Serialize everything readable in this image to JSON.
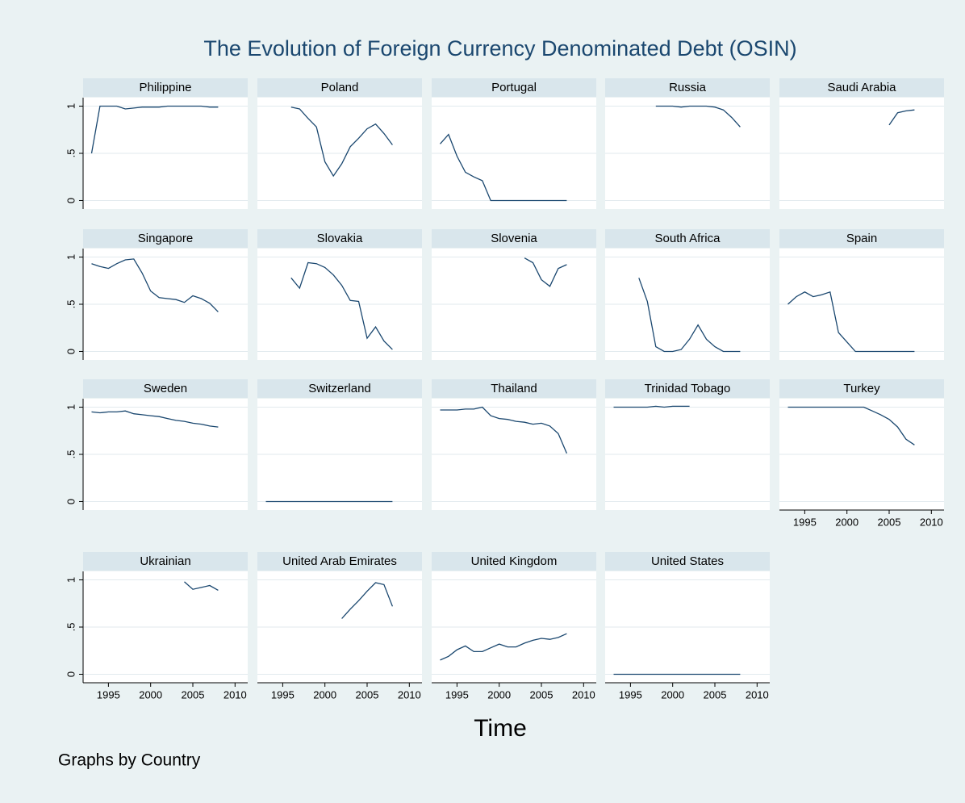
{
  "title": "The Evolution of Foreign Currency Denominated Debt (OSIN)",
  "x_label": "Time",
  "note": "Graphs by Country",
  "chart_data": [
    {
      "type": "line",
      "title": "Philippine",
      "x": [
        1993,
        1994,
        1995,
        1996,
        1997,
        1998,
        1999,
        2000,
        2001,
        2002,
        2003,
        2004,
        2005,
        2006,
        2007,
        2008
      ],
      "values": [
        0.5,
        1.0,
        1.0,
        1.0,
        0.97,
        0.98,
        0.99,
        0.99,
        0.99,
        1.0,
        1.0,
        1.0,
        1.0,
        1.0,
        0.99,
        0.99
      ],
      "xlim": [
        1992,
        2011.5
      ],
      "ylim": [
        -0.09,
        1.09
      ],
      "yticks": [
        0,
        {
          "value": 0.5,
          "label": ".5"
        },
        1
      ],
      "color": "#1a476f"
    },
    {
      "type": "line",
      "title": "Poland",
      "x": [
        1996,
        1997,
        1998,
        1999,
        2000,
        2001,
        2002,
        2003,
        2004,
        2005,
        2006,
        2007,
        2008
      ],
      "values": [
        0.99,
        0.97,
        0.87,
        0.78,
        0.41,
        0.26,
        0.39,
        0.57,
        0.66,
        0.76,
        0.81,
        0.71,
        0.59
      ],
      "xlim": [
        1992,
        2011.5
      ],
      "ylim": [
        -0.09,
        1.09
      ],
      "yticks": [
        0,
        0.5,
        1
      ],
      "color": "#1a476f"
    },
    {
      "type": "line",
      "title": "Portugal",
      "x": [
        1993,
        1994,
        1995,
        1996,
        1997,
        1998,
        1999,
        2000,
        2001,
        2002,
        2003,
        2004,
        2005,
        2006,
        2007,
        2008
      ],
      "values": [
        0.6,
        0.7,
        0.47,
        0.3,
        0.25,
        0.21,
        0,
        0,
        0,
        0,
        0,
        0,
        0,
        0,
        0,
        0
      ],
      "xlim": [
        1992,
        2011.5
      ],
      "ylim": [
        -0.09,
        1.09
      ],
      "yticks": [
        0,
        0.5,
        1
      ],
      "color": "#1a476f"
    },
    {
      "type": "line",
      "title": "Russia",
      "x": [
        1998,
        1999,
        2000,
        2001,
        2002,
        2003,
        2004,
        2005,
        2006,
        2007,
        2008
      ],
      "values": [
        1.0,
        1.0,
        1.0,
        0.99,
        1.0,
        1.0,
        1.0,
        0.99,
        0.96,
        0.88,
        0.78
      ],
      "xlim": [
        1992,
        2011.5
      ],
      "ylim": [
        -0.09,
        1.09
      ],
      "yticks": [
        0,
        0.5,
        1
      ],
      "color": "#1a476f"
    },
    {
      "type": "line",
      "title": "Saudi Arabia",
      "x": [
        2005,
        2006,
        2007,
        2008
      ],
      "values": [
        0.8,
        0.93,
        0.95,
        0.96
      ],
      "xlim": [
        1992,
        2011.5
      ],
      "ylim": [
        -0.09,
        1.09
      ],
      "yticks": [
        0,
        0.5,
        1
      ],
      "color": "#1a476f"
    },
    {
      "type": "line",
      "title": "Singapore",
      "x": [
        1993,
        1994,
        1995,
        1996,
        1997,
        1998,
        1999,
        2000,
        2001,
        2002,
        2003,
        2004,
        2005,
        2006,
        2007,
        2008
      ],
      "values": [
        0.93,
        0.9,
        0.88,
        0.93,
        0.97,
        0.98,
        0.83,
        0.64,
        0.57,
        0.56,
        0.55,
        0.52,
        0.59,
        0.56,
        0.51,
        0.42
      ],
      "xlim": [
        1992,
        2011.5
      ],
      "ylim": [
        -0.09,
        1.09
      ],
      "yticks": [
        0,
        {
          "value": 0.5,
          "label": ".5"
        },
        1
      ],
      "color": "#1a476f"
    },
    {
      "type": "line",
      "title": "Slovakia",
      "x": [
        1996,
        1997,
        1998,
        1999,
        2000,
        2001,
        2002,
        2003,
        2004,
        2005,
        2006,
        2007,
        2008
      ],
      "values": [
        0.78,
        0.67,
        0.94,
        0.93,
        0.89,
        0.81,
        0.7,
        0.54,
        0.53,
        0.14,
        0.26,
        0.11,
        0.02
      ],
      "xlim": [
        1992,
        2011.5
      ],
      "ylim": [
        -0.09,
        1.09
      ],
      "yticks": [
        0,
        0.5,
        1
      ],
      "color": "#1a476f"
    },
    {
      "type": "line",
      "title": "Slovenia",
      "x": [
        2003,
        2004,
        2005,
        2006,
        2007,
        2008
      ],
      "values": [
        0.99,
        0.94,
        0.76,
        0.69,
        0.88,
        0.92
      ],
      "xlim": [
        1992,
        2011.5
      ],
      "ylim": [
        -0.09,
        1.09
      ],
      "yticks": [
        0,
        0.5,
        1
      ],
      "color": "#1a476f"
    },
    {
      "type": "line",
      "title": "South Africa",
      "x": [
        1996,
        1997,
        1998,
        1999,
        2000,
        2001,
        2002,
        2003,
        2004,
        2005,
        2006,
        2007,
        2008
      ],
      "values": [
        0.78,
        0.53,
        0.05,
        0,
        0,
        0.02,
        0.13,
        0.28,
        0.13,
        0.05,
        0,
        0,
        0
      ],
      "xlim": [
        1992,
        2011.5
      ],
      "ylim": [
        -0.09,
        1.09
      ],
      "yticks": [
        0,
        0.5,
        1
      ],
      "color": "#1a476f"
    },
    {
      "type": "line",
      "title": "Spain",
      "x": [
        1993,
        1994,
        1995,
        1996,
        1997,
        1998,
        1999,
        2000,
        2001,
        2002,
        2003,
        2004,
        2005,
        2006,
        2007,
        2008
      ],
      "values": [
        0.5,
        0.58,
        0.63,
        0.58,
        0.6,
        0.63,
        0.2,
        0.1,
        0,
        0,
        0,
        0,
        0,
        0,
        0,
        0
      ],
      "xlim": [
        1992,
        2011.5
      ],
      "ylim": [
        -0.09,
        1.09
      ],
      "yticks": [
        0,
        0.5,
        1
      ],
      "color": "#1a476f"
    },
    {
      "type": "line",
      "title": "Sweden",
      "x": [
        1993,
        1994,
        1995,
        1996,
        1997,
        1998,
        1999,
        2000,
        2001,
        2002,
        2003,
        2004,
        2005,
        2006,
        2007,
        2008
      ],
      "values": [
        0.95,
        0.94,
        0.95,
        0.95,
        0.96,
        0.93,
        0.92,
        0.91,
        0.9,
        0.88,
        0.86,
        0.85,
        0.83,
        0.82,
        0.8,
        0.79
      ],
      "xlim": [
        1992,
        2011.5
      ],
      "ylim": [
        -0.09,
        1.09
      ],
      "yticks": [
        0,
        {
          "value": 0.5,
          "label": ".5"
        },
        1
      ],
      "color": "#1a476f"
    },
    {
      "type": "line",
      "title": "Switzerland",
      "x": [
        1993,
        1994,
        1995,
        1996,
        1997,
        1998,
        1999,
        2000,
        2001,
        2002,
        2003,
        2004,
        2005,
        2006,
        2007,
        2008
      ],
      "values": [
        0,
        0,
        0,
        0,
        0,
        0,
        0,
        0,
        0,
        0,
        0,
        0,
        0,
        0,
        0,
        0
      ],
      "xlim": [
        1992,
        2011.5
      ],
      "ylim": [
        -0.09,
        1.09
      ],
      "yticks": [
        0,
        0.5,
        1
      ],
      "color": "#1a476f"
    },
    {
      "type": "line",
      "title": "Thailand",
      "x": [
        1993,
        1994,
        1995,
        1996,
        1997,
        1998,
        1999,
        2000,
        2001,
        2002,
        2003,
        2004,
        2005,
        2006,
        2007,
        2008
      ],
      "values": [
        0.97,
        0.97,
        0.97,
        0.98,
        0.98,
        1.0,
        0.91,
        0.88,
        0.87,
        0.85,
        0.84,
        0.82,
        0.83,
        0.8,
        0.72,
        0.51
      ],
      "xlim": [
        1992,
        2011.5
      ],
      "ylim": [
        -0.09,
        1.09
      ],
      "yticks": [
        0,
        0.5,
        1
      ],
      "color": "#1a476f"
    },
    {
      "type": "line",
      "title": "Trinidad Tobago",
      "x": [
        1993,
        1994,
        1995,
        1996,
        1997,
        1998,
        1999,
        2000,
        2001,
        2002
      ],
      "values": [
        1.0,
        1.0,
        1.0,
        1.0,
        1.0,
        1.01,
        1.0,
        1.01,
        1.01,
        1.01
      ],
      "xlim": [
        1992,
        2011.5
      ],
      "ylim": [
        -0.09,
        1.09
      ],
      "yticks": [
        0,
        0.5,
        1
      ],
      "color": "#1a476f"
    },
    {
      "type": "line",
      "title": "Turkey",
      "x": [
        1993,
        1994,
        1995,
        1996,
        1997,
        1998,
        1999,
        2000,
        2001,
        2002,
        2003,
        2004,
        2005,
        2006,
        2007,
        2008
      ],
      "values": [
        1.0,
        1.0,
        1.0,
        1.0,
        1.0,
        1.0,
        1.0,
        1.0,
        1.0,
        1.0,
        0.96,
        0.92,
        0.87,
        0.79,
        0.66,
        0.6
      ],
      "xlim": [
        1992,
        2011.5
      ],
      "ylim": [
        -0.09,
        1.09
      ],
      "yticks": [
        0,
        0.5,
        1
      ],
      "xticks": [
        1995,
        2000,
        2005,
        2010
      ],
      "color": "#1a476f"
    },
    {
      "type": "line",
      "title": "Ukrainian",
      "x": [
        2004,
        2005,
        2006,
        2007,
        2008
      ],
      "values": [
        0.98,
        0.9,
        0.92,
        0.94,
        0.89
      ],
      "xlim": [
        1992,
        2011.5
      ],
      "ylim": [
        -0.09,
        1.09
      ],
      "yticks": [
        0,
        {
          "value": 0.5,
          "label": ".5"
        },
        1
      ],
      "xticks": [
        1995,
        2000,
        2005,
        2010
      ],
      "color": "#1a476f"
    },
    {
      "type": "line",
      "title": "United Arab Emirates",
      "x": [
        2002,
        2003,
        2004,
        2005,
        2006,
        2007,
        2008
      ],
      "values": [
        0.59,
        0.69,
        0.78,
        0.88,
        0.97,
        0.95,
        0.72
      ],
      "xlim": [
        1992,
        2011.5
      ],
      "ylim": [
        -0.09,
        1.09
      ],
      "yticks": [
        0,
        0.5,
        1
      ],
      "xticks": [
        1995,
        2000,
        2005,
        2010
      ],
      "color": "#1a476f"
    },
    {
      "type": "line",
      "title": "United Kingdom",
      "x": [
        1993,
        1994,
        1995,
        1996,
        1997,
        1998,
        1999,
        2000,
        2001,
        2002,
        2003,
        2004,
        2005,
        2006,
        2007,
        2008
      ],
      "values": [
        0.15,
        0.19,
        0.26,
        0.3,
        0.24,
        0.24,
        0.28,
        0.32,
        0.29,
        0.29,
        0.33,
        0.36,
        0.38,
        0.37,
        0.39,
        0.43
      ],
      "xlim": [
        1992,
        2011.5
      ],
      "ylim": [
        -0.09,
        1.09
      ],
      "yticks": [
        0,
        0.5,
        1
      ],
      "xticks": [
        1995,
        2000,
        2005,
        2010
      ],
      "color": "#1a476f"
    },
    {
      "type": "line",
      "title": "United States",
      "x": [
        1993,
        1994,
        1995,
        1996,
        1997,
        1998,
        1999,
        2000,
        2001,
        2002,
        2003,
        2004,
        2005,
        2006,
        2007,
        2008
      ],
      "values": [
        0,
        0,
        0,
        0,
        0,
        0,
        0,
        0,
        0,
        0,
        0,
        0,
        0,
        0,
        0,
        0
      ],
      "xlim": [
        1992,
        2011.5
      ],
      "ylim": [
        -0.09,
        1.09
      ],
      "yticks": [
        0,
        0.5,
        1
      ],
      "xticks": [
        1995,
        2000,
        2005,
        2010
      ],
      "color": "#1a476f"
    }
  ]
}
